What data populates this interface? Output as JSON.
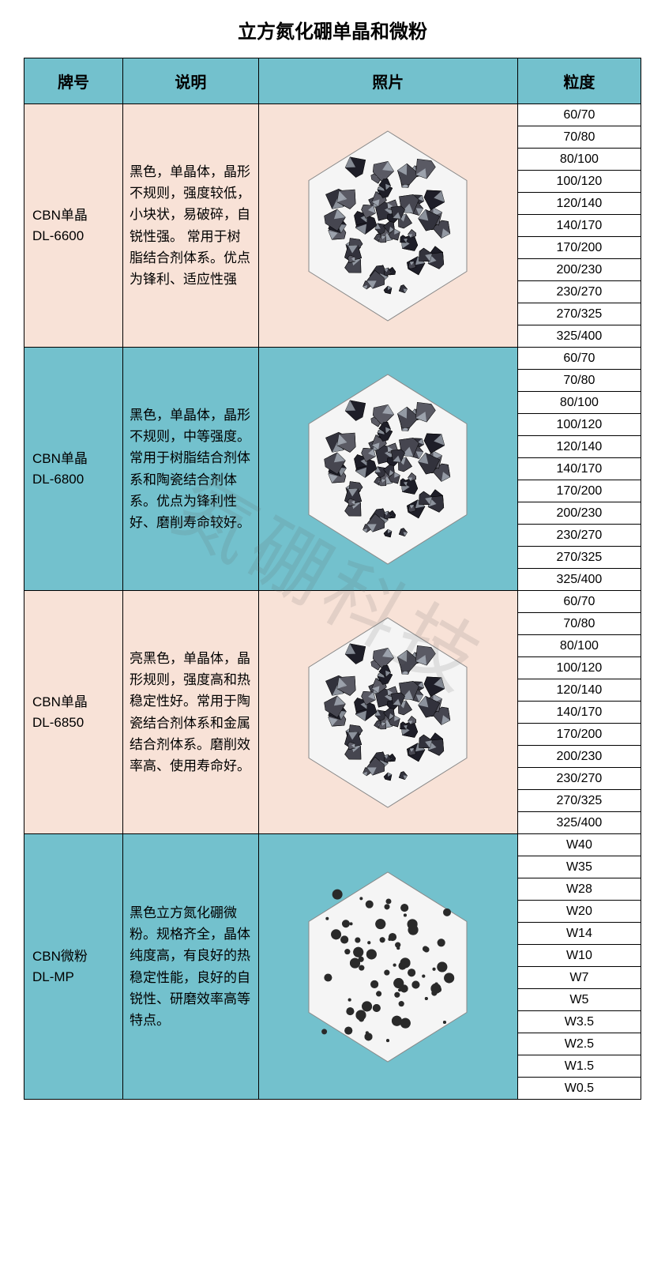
{
  "title": "立方氮化硼单晶和微粉",
  "headers": {
    "brand": "牌号",
    "desc": "说明",
    "photo": "照片",
    "grain": "粒度"
  },
  "colors": {
    "header_bg": "#73c1cd",
    "pink_bg": "#f8e2d7",
    "blue_bg": "#73c1cd",
    "border": "#000000",
    "text": "#000000"
  },
  "watermark": "氮硼科技",
  "rows": [
    {
      "row_class": "row-pink",
      "brand_line1": "CBN单晶",
      "brand_line2": "DL-6600",
      "desc": "黑色，单晶体，晶形不规则，强度较低，小块状，易破碎，自锐性强。 常用于树脂结合剂体系。优点为锋利、适应性强",
      "photo_type": "dense",
      "grains": [
        "60/70",
        "70/80",
        "80/100",
        "100/120",
        "120/140",
        "140/170",
        "170/200",
        "200/230",
        "230/270",
        "270/325",
        "325/400"
      ]
    },
    {
      "row_class": "row-blue",
      "brand_line1": "CBN单晶",
      "brand_line2": "DL-6800",
      "desc": "黑色，单晶体，晶形不规则，中等强度。常用于树脂结合剂体系和陶瓷结合剂体系。优点为锋利性好、磨削寿命较好。",
      "photo_type": "dense",
      "grains": [
        "60/70",
        "70/80",
        "80/100",
        "100/120",
        "120/140",
        "140/170",
        "170/200",
        "200/230",
        "230/270",
        "270/325",
        "325/400"
      ]
    },
    {
      "row_class": "row-pink",
      "brand_line1": "CBN单晶",
      "brand_line2": "DL-6850",
      "desc": "亮黑色，单晶体，晶形规则，强度高和热稳定性好。常用于陶瓷结合剂体系和金属结合剂体系。磨削效率高、使用寿命好。",
      "photo_type": "dense",
      "grains": [
        "60/70",
        "70/80",
        "80/100",
        "100/120",
        "120/140",
        "140/170",
        "170/200",
        "200/230",
        "230/270",
        "270/325",
        "325/400"
      ]
    },
    {
      "row_class": "row-blue",
      "brand_line1": "CBN微粉",
      "brand_line2": "DL-MP",
      "desc": "黑色立方氮化硼微粉。规格齐全，晶体纯度高，有良好的热稳定性能，良好的自锐性、研磨效率高等特点。",
      "photo_type": "sparse",
      "grains": [
        "W40",
        "W35",
        "W28",
        "W20",
        "W14",
        "W10",
        "W7",
        "W5",
        "W3.5",
        "W2.5",
        "W1.5",
        "W0.5"
      ]
    }
  ]
}
